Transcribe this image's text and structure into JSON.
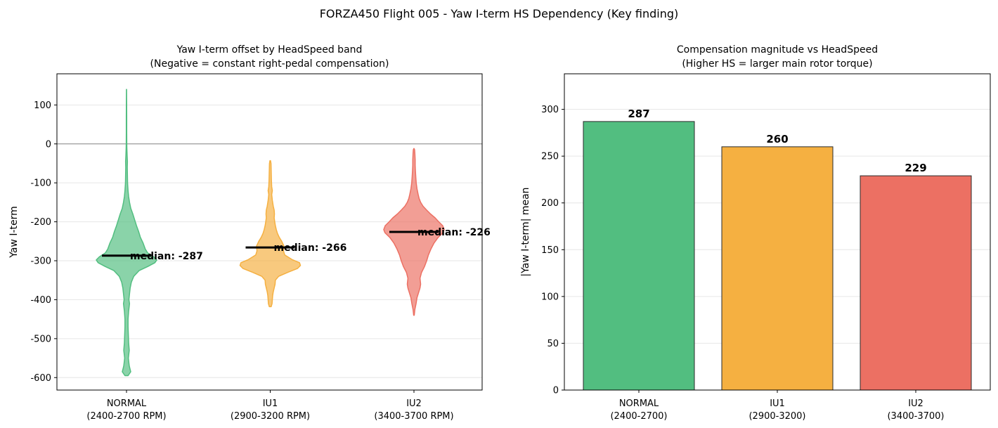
{
  "figure": {
    "suptitle": "FORZA450 Flight 005 - Yaw I-term HS Dependency (Key finding)"
  },
  "colors": {
    "normal": "#52be80",
    "iu1": "#f5b041",
    "iu2": "#ec7063"
  },
  "chart_data": [
    {
      "type": "violin",
      "title": "Yaw I-term offset by HeadSpeed band",
      "subtitle": "(Negative = constant right-pedal compensation)",
      "xlabel": "",
      "ylabel": "Yaw I-term",
      "ylim": [
        -632,
        180
      ],
      "yticks": [
        100,
        0,
        -100,
        -200,
        -300,
        -400,
        -500,
        -600
      ],
      "ytick_labels": [
        "100",
        "0",
        "-100",
        "-200",
        "-300",
        "-400",
        "-500",
        "-600"
      ],
      "grid": "y",
      "reference_line_y": 0,
      "categories": [
        {
          "line1": "NORMAL",
          "line2": "(2400-2700 RPM)"
        },
        {
          "line1": "IU1",
          "line2": "(2900-3200 RPM)"
        },
        {
          "line1": "IU2",
          "line2": "(3400-3700 RPM)"
        }
      ],
      "series": [
        {
          "min": -595,
          "max": 140,
          "median": -287,
          "median_label": "median: -287",
          "profile": [
            [
              -595,
              0.05
            ],
            [
              -585,
              0.14
            ],
            [
              -570,
              0.09
            ],
            [
              -550,
              0.06
            ],
            [
              -530,
              0.09
            ],
            [
              -510,
              0.07
            ],
            [
              -490,
              0.06
            ],
            [
              -470,
              0.05
            ],
            [
              -450,
              0.05
            ],
            [
              -430,
              0.07
            ],
            [
              -410,
              0.1
            ],
            [
              -400,
              0.08
            ],
            [
              -385,
              0.1
            ],
            [
              -370,
              0.12
            ],
            [
              -355,
              0.16
            ],
            [
              -340,
              0.24
            ],
            [
              -325,
              0.42
            ],
            [
              -315,
              0.7
            ],
            [
              -305,
              0.94
            ],
            [
              -298,
              1.0
            ],
            [
              -290,
              0.9
            ],
            [
              -280,
              0.7
            ],
            [
              -270,
              0.62
            ],
            [
              -255,
              0.55
            ],
            [
              -240,
              0.46
            ],
            [
              -225,
              0.4
            ],
            [
              -210,
              0.33
            ],
            [
              -195,
              0.27
            ],
            [
              -180,
              0.21
            ],
            [
              -165,
              0.14
            ],
            [
              -150,
              0.1
            ],
            [
              -135,
              0.07
            ],
            [
              -120,
              0.05
            ],
            [
              -100,
              0.035
            ],
            [
              -80,
              0.03
            ],
            [
              -60,
              0.025
            ],
            [
              -45,
              0.03
            ],
            [
              -30,
              0.02
            ],
            [
              -10,
              0.012
            ],
            [
              0,
              0.01
            ],
            [
              30,
              0.008
            ],
            [
              70,
              0.006
            ],
            [
              110,
              0.004
            ],
            [
              140,
              0.002
            ]
          ]
        },
        {
          "min": -418,
          "max": -43,
          "median": -266,
          "median_label": "median: -266",
          "profile": [
            [
              -418,
              0.03
            ],
            [
              -410,
              0.06
            ],
            [
              -400,
              0.07
            ],
            [
              -390,
              0.08
            ],
            [
              -380,
              0.1
            ],
            [
              -370,
              0.13
            ],
            [
              -360,
              0.16
            ],
            [
              -350,
              0.17
            ],
            [
              -340,
              0.28
            ],
            [
              -330,
              0.58
            ],
            [
              -320,
              0.9
            ],
            [
              -312,
              1.0
            ],
            [
              -305,
              0.97
            ],
            [
              -297,
              0.72
            ],
            [
              -285,
              0.48
            ],
            [
              -275,
              0.44
            ],
            [
              -262,
              0.45
            ],
            [
              -250,
              0.38
            ],
            [
              -240,
              0.3
            ],
            [
              -230,
              0.24
            ],
            [
              -220,
              0.2
            ],
            [
              -210,
              0.17
            ],
            [
              -200,
              0.15
            ],
            [
              -190,
              0.13
            ],
            [
              -180,
              0.14
            ],
            [
              -170,
              0.13
            ],
            [
              -160,
              0.1
            ],
            [
              -145,
              0.07
            ],
            [
              -130,
              0.05
            ],
            [
              -120,
              0.07
            ],
            [
              -110,
              0.05
            ],
            [
              -95,
              0.04
            ],
            [
              -80,
              0.035
            ],
            [
              -65,
              0.03
            ],
            [
              -50,
              0.025
            ],
            [
              -43,
              0.01
            ]
          ]
        },
        {
          "min": -440,
          "max": -12,
          "median": -226,
          "median_label": "median: -226",
          "profile": [
            [
              -440,
              0.01
            ],
            [
              -425,
              0.03
            ],
            [
              -410,
              0.07
            ],
            [
              -395,
              0.1
            ],
            [
              -380,
              0.16
            ],
            [
              -370,
              0.2
            ],
            [
              -360,
              0.22
            ],
            [
              -345,
              0.2
            ],
            [
              -330,
              0.25
            ],
            [
              -315,
              0.35
            ],
            [
              -300,
              0.42
            ],
            [
              -285,
              0.48
            ],
            [
              -270,
              0.56
            ],
            [
              -255,
              0.66
            ],
            [
              -240,
              0.8
            ],
            [
              -228,
              0.96
            ],
            [
              -220,
              1.0
            ],
            [
              -210,
              0.95
            ],
            [
              -200,
              0.82
            ],
            [
              -190,
              0.7
            ],
            [
              -180,
              0.55
            ],
            [
              -170,
              0.42
            ],
            [
              -160,
              0.3
            ],
            [
              -150,
              0.22
            ],
            [
              -140,
              0.17
            ],
            [
              -130,
              0.14
            ],
            [
              -115,
              0.1
            ],
            [
              -100,
              0.075
            ],
            [
              -85,
              0.06
            ],
            [
              -70,
              0.05
            ],
            [
              -55,
              0.04
            ],
            [
              -40,
              0.04
            ],
            [
              -25,
              0.03
            ],
            [
              -15,
              0.02
            ],
            [
              -12,
              0.005
            ]
          ]
        }
      ]
    },
    {
      "type": "bar",
      "title": "Compensation magnitude vs HeadSpeed",
      "subtitle": "(Higher HS = larger main rotor torque)",
      "xlabel": "",
      "ylabel": "|Yaw I-term| mean",
      "ylim": [
        0,
        338
      ],
      "yticks": [
        0,
        50,
        100,
        150,
        200,
        250,
        300
      ],
      "ytick_labels": [
        "0",
        "50",
        "100",
        "150",
        "200",
        "250",
        "300"
      ],
      "grid": "y",
      "categories": [
        {
          "line1": "NORMAL",
          "line2": "(2400-2700)"
        },
        {
          "line1": "IU1",
          "line2": "(2900-3200)"
        },
        {
          "line1": "IU2",
          "line2": "(3400-3700)"
        }
      ],
      "values": [
        287,
        260,
        229
      ],
      "value_labels": [
        "287",
        "260",
        "229"
      ]
    }
  ]
}
